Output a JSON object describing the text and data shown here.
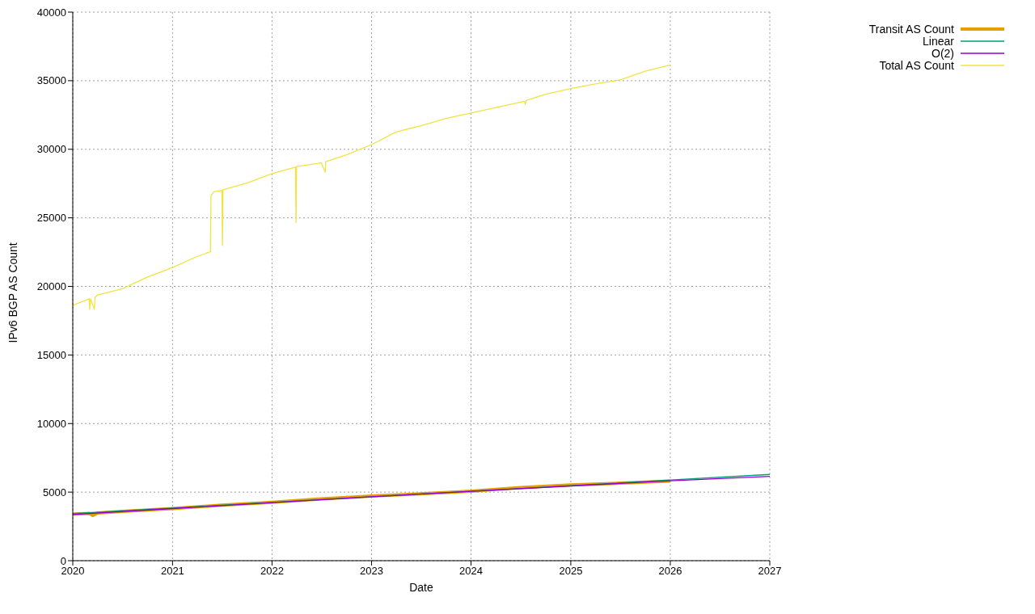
{
  "chart_data": {
    "type": "line",
    "xlabel": "Date",
    "ylabel": "IPv6 BGP AS Count",
    "xlim": [
      "2020",
      "2027"
    ],
    "xticks": [
      "2020",
      "2021",
      "2022",
      "2023",
      "2024",
      "2025",
      "2026",
      "2027"
    ],
    "ylim": [
      0,
      40000
    ],
    "yticks": [
      0,
      5000,
      10000,
      15000,
      20000,
      25000,
      30000,
      35000,
      40000
    ],
    "grid": true,
    "legend": "top right",
    "marker": "none",
    "line_style": "solid",
    "series": [
      {
        "name": "Transit AS Count",
        "color": "#e69f00",
        "x": [
          "2020-01-01",
          "2020-03-01",
          "2020-03-15",
          "2020-04-01",
          "2020-07-01",
          "2021-01-01",
          "2021-07-01",
          "2022-01-01",
          "2022-07-01",
          "2023-01-01",
          "2023-07-01",
          "2024-01-01",
          "2024-07-01",
          "2025-01-01",
          "2025-07-01",
          "2026-01-01"
        ],
        "values": [
          3390,
          3450,
          3300,
          3480,
          3600,
          3800,
          4050,
          4250,
          4500,
          4710,
          4880,
          5060,
          5330,
          5520,
          5650,
          5800
        ]
      },
      {
        "name": "Linear",
        "color": "#009e73",
        "x": [
          "2020-01-01",
          "2021-01-01",
          "2022-01-01",
          "2023-01-01",
          "2024-01-01",
          "2025-01-01",
          "2026-01-01",
          "2027-01-01"
        ],
        "values": [
          3430,
          3840,
          4250,
          4660,
          5060,
          5470,
          5880,
          6290
        ]
      },
      {
        "name": "O(2)",
        "color": "#9400d3",
        "x": [
          "2020-01-01",
          "2021-01-01",
          "2022-01-01",
          "2023-01-01",
          "2024-01-01",
          "2025-01-01",
          "2026-01-01",
          "2027-01-01"
        ],
        "values": [
          3370,
          3800,
          4230,
          4660,
          5060,
          5450,
          5820,
          6150
        ]
      },
      {
        "name": "Total AS Count",
        "color": "#f0e442",
        "x": [
          "2020-01-01",
          "2020-03-01",
          "2020-03-03",
          "2020-03-06",
          "2020-03-20",
          "2020-03-23",
          "2020-04-01",
          "2020-07-01",
          "2020-10-01",
          "2021-01-01",
          "2021-04-01",
          "2021-05-20",
          "2021-05-22",
          "2021-06-01",
          "2021-07-01",
          "2021-07-03",
          "2021-07-05",
          "2021-10-01",
          "2022-01-01",
          "2022-03-28",
          "2022-03-30",
          "2022-04-01",
          "2022-07-01",
          "2022-07-15",
          "2022-07-17",
          "2022-10-01",
          "2023-01-01",
          "2023-04-01",
          "2023-07-01",
          "2023-10-01",
          "2024-01-01",
          "2024-04-01",
          "2024-07-15",
          "2024-07-18",
          "2024-07-21",
          "2024-10-01",
          "2025-01-01",
          "2025-04-01",
          "2025-07-01",
          "2025-10-01",
          "2026-01-01"
        ],
        "values": [
          18620,
          19100,
          18330,
          19100,
          18330,
          19200,
          19370,
          19830,
          20690,
          21380,
          22180,
          22530,
          26610,
          26900,
          27000,
          22990,
          27050,
          27530,
          28220,
          28700,
          24650,
          28740,
          29000,
          28330,
          29100,
          29600,
          30340,
          31260,
          31720,
          32240,
          32640,
          33040,
          33500,
          33270,
          33550,
          34020,
          34420,
          34770,
          35060,
          35690,
          36150
        ]
      }
    ]
  }
}
